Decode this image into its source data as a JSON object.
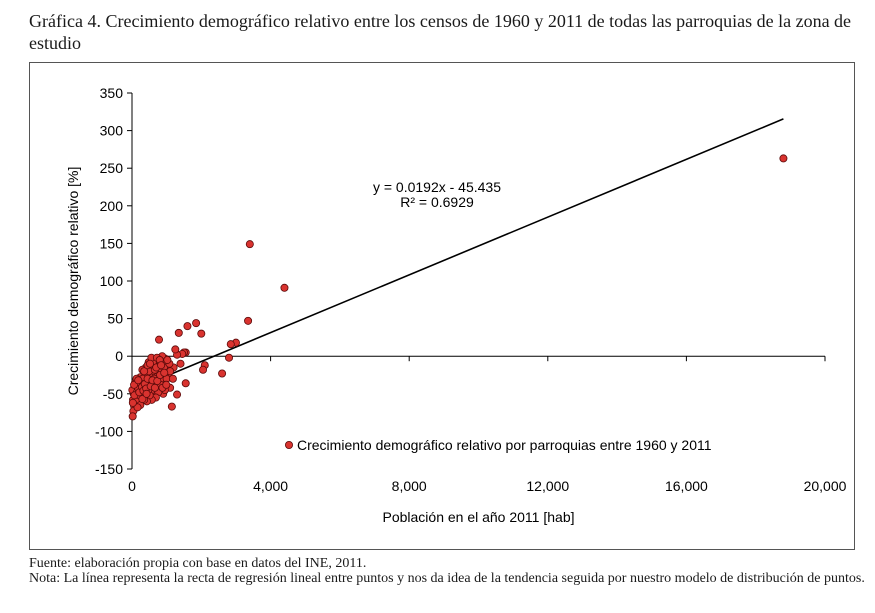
{
  "caption": {
    "title": "Gráfica 4. Crecimiento demográfico relativo entre los censos de 1960 y 2011 de todas las parroquias de la zona de estudio",
    "source": "Fuente: elaboración propia con base en datos del INE, 2011.",
    "note": "Nota: La línea representa la recta de regresión lineal entre puntos y nos da idea de la tendencia seguida por nuestro modelo de distribución de puntos."
  },
  "colors": {
    "marker": "#d9332f",
    "marker_edge": "#5a0a0a",
    "line": "#000000",
    "axis": "#000000"
  },
  "chart_data": {
    "type": "scatter",
    "title": "",
    "xlabel": "Población en el año 2011 [hab]",
    "ylabel": "Crecimiento demográfico relativo [%]",
    "xlim": [
      0,
      20000
    ],
    "ylim": [
      -150,
      350
    ],
    "xticks": [
      0,
      4000,
      8000,
      12000,
      16000,
      20000
    ],
    "xtick_labels": [
      "0",
      "4,000",
      "8,000",
      "12,000",
      "16,000",
      "20,000"
    ],
    "yticks": [
      -150,
      -100,
      -50,
      0,
      50,
      100,
      150,
      200,
      250,
      300,
      350
    ],
    "ytick_labels": [
      "-150",
      "-100",
      "-50",
      "0",
      "50",
      "100",
      "150",
      "200",
      "250",
      "300",
      "350"
    ],
    "grid": false,
    "legend": {
      "label": "Crecimiento demográfico relativo por parroquias entre 1960 y 2011",
      "placement": "bottom-center"
    },
    "trendline": {
      "slope": 0.0192,
      "intercept": -45.435,
      "x_range": [
        0,
        18800
      ],
      "equation": "y = 0.0192x - 45.435",
      "r2": "R² = 0.6929"
    },
    "series": [
      {
        "name": "Crecimiento demográfico relativo por parroquias entre 1960 y 2011",
        "points": [
          [
            18800,
            263
          ],
          [
            3400,
            149
          ],
          [
            4400,
            91
          ],
          [
            3350,
            47
          ],
          [
            3000,
            18
          ],
          [
            2850,
            16
          ],
          [
            2800,
            -2
          ],
          [
            2600,
            -23
          ],
          [
            2100,
            -12
          ],
          [
            2050,
            -18
          ],
          [
            2000,
            30
          ],
          [
            1850,
            44
          ],
          [
            1600,
            40
          ],
          [
            1550,
            5
          ],
          [
            1500,
            5
          ],
          [
            1450,
            3
          ],
          [
            1400,
            -10
          ],
          [
            1350,
            31
          ],
          [
            1300,
            2
          ],
          [
            1250,
            9
          ],
          [
            1200,
            -15
          ],
          [
            1550,
            -36
          ],
          [
            1300,
            -51
          ],
          [
            1150,
            -67
          ],
          [
            1100,
            -42
          ],
          [
            1050,
            -25
          ],
          [
            1000,
            -15
          ],
          [
            950,
            -3
          ],
          [
            900,
            -8
          ],
          [
            850,
            -30
          ],
          [
            800,
            -20
          ],
          [
            780,
            22
          ],
          [
            750,
            -40
          ],
          [
            720,
            -10
          ],
          [
            700,
            -25
          ],
          [
            680,
            -5
          ],
          [
            650,
            -50
          ],
          [
            620,
            -35
          ],
          [
            600,
            -20
          ],
          [
            580,
            -45
          ],
          [
            550,
            -12
          ],
          [
            530,
            -28
          ],
          [
            500,
            -38
          ],
          [
            480,
            -8
          ],
          [
            460,
            -55
          ],
          [
            440,
            -22
          ],
          [
            420,
            -33
          ],
          [
            400,
            -15
          ],
          [
            380,
            -48
          ],
          [
            360,
            -27
          ],
          [
            340,
            -40
          ],
          [
            320,
            -52
          ],
          [
            300,
            -18
          ],
          [
            280,
            -35
          ],
          [
            260,
            -44
          ],
          [
            240,
            -28
          ],
          [
            220,
            -58
          ],
          [
            200,
            -38
          ],
          [
            180,
            -49
          ],
          [
            160,
            -33
          ],
          [
            140,
            -62
          ],
          [
            120,
            -45
          ],
          [
            100,
            -54
          ],
          [
            80,
            -40
          ],
          [
            60,
            -66
          ],
          [
            50,
            -50
          ],
          [
            40,
            -73
          ],
          [
            30,
            -58
          ],
          [
            20,
            -80
          ],
          [
            10,
            -45
          ],
          [
            900,
            -50
          ],
          [
            950,
            -45
          ],
          [
            1000,
            -30
          ],
          [
            1100,
            -20
          ],
          [
            870,
            0
          ],
          [
            920,
            -15
          ],
          [
            820,
            -38
          ],
          [
            760,
            -48
          ],
          [
            690,
            -55
          ],
          [
            640,
            -30
          ],
          [
            570,
            -58
          ],
          [
            510,
            -52
          ],
          [
            470,
            -45
          ],
          [
            430,
            -60
          ],
          [
            390,
            -25
          ],
          [
            350,
            -58
          ],
          [
            310,
            -30
          ],
          [
            270,
            -50
          ],
          [
            230,
            -42
          ],
          [
            190,
            -55
          ],
          [
            150,
            -47
          ],
          [
            110,
            -60
          ],
          [
            70,
            -52
          ],
          [
            90,
            -35
          ],
          [
            130,
            -30
          ],
          [
            170,
            -42
          ],
          [
            210,
            -48
          ],
          [
            250,
            -36
          ],
          [
            290,
            -41
          ],
          [
            330,
            -46
          ],
          [
            370,
            -37
          ],
          [
            410,
            -43
          ],
          [
            450,
            -30
          ],
          [
            490,
            -20
          ],
          [
            540,
            -40
          ],
          [
            590,
            -32
          ],
          [
            660,
            -42
          ],
          [
            730,
            -33
          ],
          [
            810,
            -25
          ],
          [
            880,
            -42
          ],
          [
            990,
            -38
          ],
          [
            1080,
            -10
          ],
          [
            1180,
            -30
          ],
          [
            660,
            -18
          ],
          [
            600,
            -8
          ],
          [
            560,
            -2
          ],
          [
            720,
            -2
          ],
          [
            800,
            -5
          ],
          [
            240,
            -65
          ],
          [
            160,
            -68
          ],
          [
            60,
            -38
          ],
          [
            25,
            -62
          ],
          [
            300,
            -57
          ],
          [
            420,
            -50
          ],
          [
            180,
            -32
          ],
          [
            350,
            -20
          ],
          [
            450,
            -12
          ],
          [
            520,
            -10
          ],
          [
            700,
            -15
          ],
          [
            840,
            -12
          ],
          [
            930,
            -22
          ],
          [
            1020,
            -5
          ]
        ]
      }
    ]
  }
}
